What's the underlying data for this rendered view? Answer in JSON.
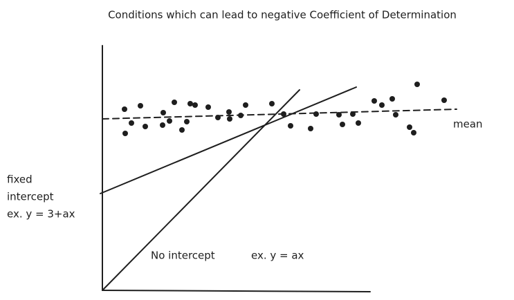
{
  "title": "Conditions which can lead to negative Coefficient of Determination",
  "labels": {
    "mean": "mean",
    "fixed_intercept": [
      "fixed",
      "intercept",
      "ex. y = 3+ax"
    ],
    "no_intercept": "No intercept",
    "no_intercept_example": "ex. y = ax"
  }
}
